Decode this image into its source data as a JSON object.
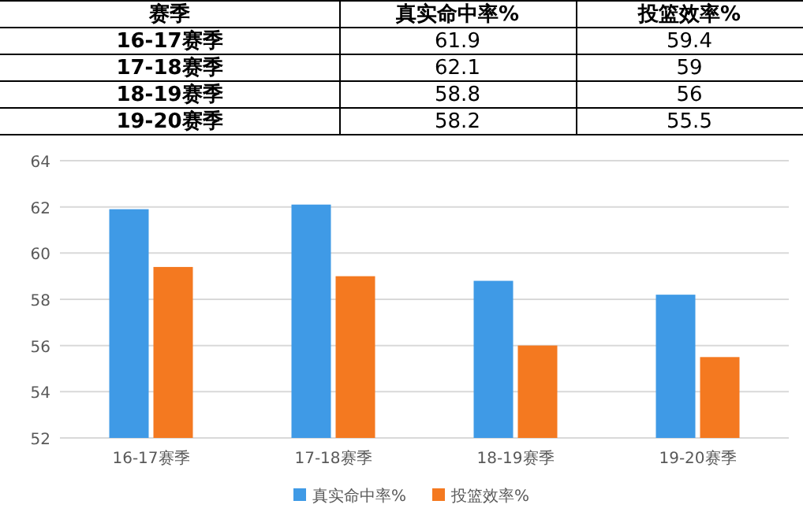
{
  "chart_data": [
    {
      "type": "other",
      "annotations": [
        "赛季"
      ],
      "categories": [
        "16-17赛季",
        "17-18赛季",
        "18-19赛季",
        "19-20赛季"
      ],
      "series": [
        {
          "name": "真实命中率%",
          "values": [
            61.9,
            62.1,
            58.8,
            58.2
          ]
        },
        {
          "name": "投篮效率%",
          "values": [
            59.4,
            59,
            56,
            55.5
          ]
        }
      ],
      "data_labels": true
    },
    {
      "type": "bar",
      "categories": [
        "16-17赛季",
        "17-18赛季",
        "18-19赛季",
        "19-20赛季"
      ],
      "series": [
        {
          "name": "真实命中率%",
          "color": "#3f9ae6",
          "values": [
            61.9,
            62.1,
            58.8,
            58.2
          ]
        },
        {
          "name": "投篮效率%",
          "color": "#f47920",
          "values": [
            59.4,
            59,
            56,
            55.5
          ]
        }
      ],
      "ylim": [
        52,
        64
      ],
      "yticks": [
        52,
        54,
        56,
        58,
        60,
        62,
        64
      ],
      "grid": "y",
      "legend": "bottom"
    }
  ]
}
